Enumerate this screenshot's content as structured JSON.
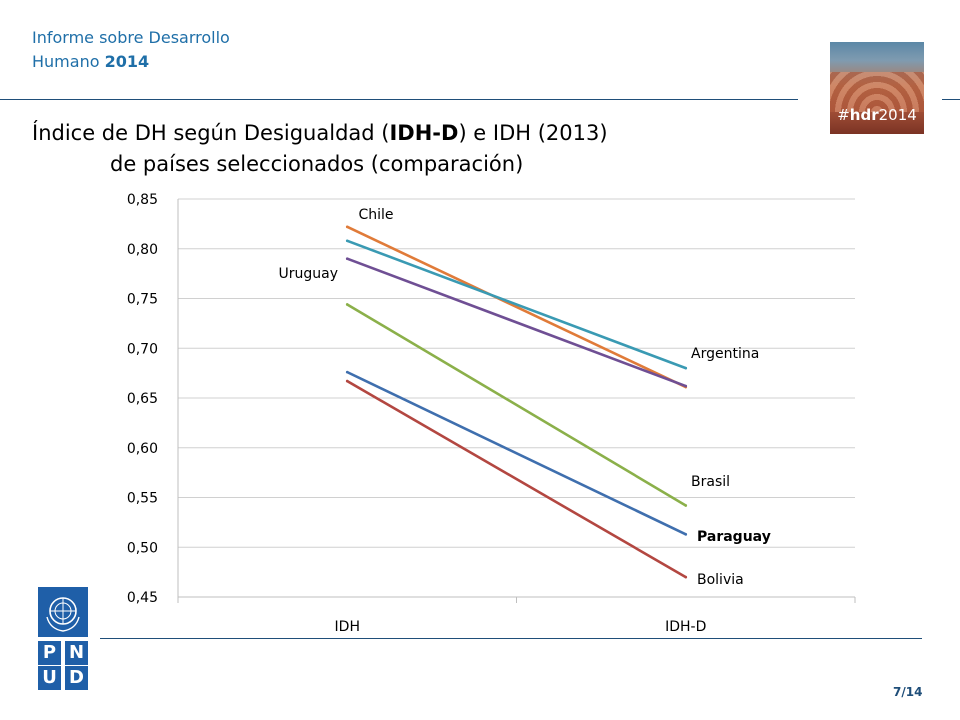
{
  "header": {
    "report_line1": "Informe sobre Desarrollo",
    "report_line2_a": "Humano ",
    "report_line2_b": "2014",
    "hashtag_a": "#",
    "hashtag_b": "hdr",
    "hashtag_c": "2014"
  },
  "title": {
    "line1_a": "Índice de DH según Desigualdad (",
    "line1_b": "IDH-D",
    "line1_c": ") e IDH (2013)",
    "line2": "de países seleccionados (comparación)"
  },
  "logo": {
    "cells": [
      "P",
      "N",
      "U",
      "D"
    ]
  },
  "footer": {
    "page": "7/14"
  },
  "chart_data": {
    "type": "line",
    "categories": [
      "IDH",
      "IDH-D"
    ],
    "ylim": [
      0.45,
      0.85
    ],
    "yticks": [
      0.45,
      0.5,
      0.55,
      0.6,
      0.65,
      0.7,
      0.75,
      0.8,
      0.85
    ],
    "ytick_labels": [
      "0,45",
      "0,50",
      "0,55",
      "0,60",
      "0,65",
      "0,70",
      "0,75",
      "0,80",
      "0,85"
    ],
    "grid": true,
    "series": [
      {
        "name": "Chile",
        "values": [
          0.822,
          0.661
        ],
        "color": "#e07b39",
        "label_at": "start",
        "bold": false
      },
      {
        "name": "Argentina",
        "values": [
          0.808,
          0.68
        ],
        "color": "#3a9ab3",
        "label_at": "end",
        "bold": false
      },
      {
        "name": "Uruguay",
        "values": [
          0.79,
          0.662
        ],
        "color": "#6f4f94",
        "label_at": "start",
        "bold": false
      },
      {
        "name": "Brasil",
        "values": [
          0.744,
          0.542
        ],
        "color": "#8bb04a",
        "label_at": "end",
        "bold": false
      },
      {
        "name": "Paraguay",
        "values": [
          0.676,
          0.513
        ],
        "color": "#3f6fae",
        "label_at": "end",
        "bold": true
      },
      {
        "name": "Bolivia",
        "values": [
          0.667,
          0.47
        ],
        "color": "#b34741",
        "label_at": "end",
        "bold": false
      }
    ]
  }
}
